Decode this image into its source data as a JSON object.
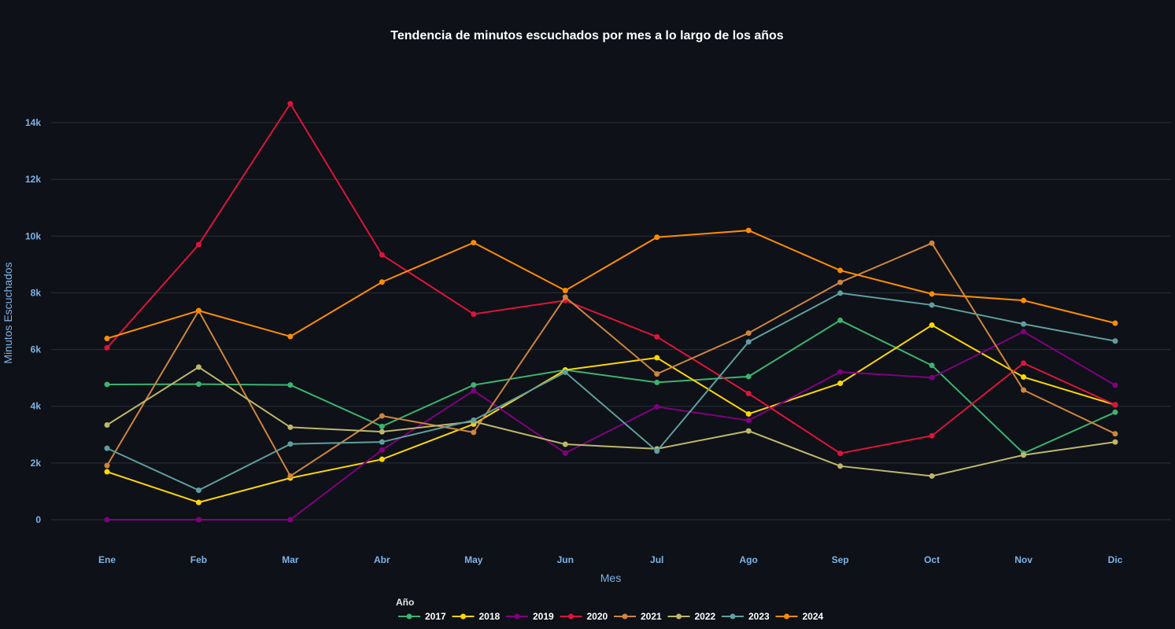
{
  "chart_data": {
    "type": "line",
    "title": "Tendencia de minutos escuchados por mes a lo largo de los años",
    "xlabel": "Mes",
    "ylabel": "Minutos Escuchados",
    "categories": [
      "Ene",
      "Feb",
      "Mar",
      "Abr",
      "May",
      "Jun",
      "Jul",
      "Ago",
      "Sep",
      "Oct",
      "Nov",
      "Dic"
    ],
    "yticks": [
      0,
      2000,
      4000,
      6000,
      8000,
      10000,
      12000,
      14000
    ],
    "ytick_labels": [
      "0",
      "2k",
      "4k",
      "6k",
      "8k",
      "10k",
      "12k",
      "14k"
    ],
    "ylim": [
      -1000,
      16000
    ],
    "grid": true,
    "legend_title": "Año",
    "legend_position": "bottom-center",
    "series": [
      {
        "name": "2017",
        "color": "#3cb371",
        "values": [
          4770,
          4780,
          4750,
          3290,
          4750,
          5280,
          4840,
          5050,
          7030,
          5440,
          2340,
          3790
        ]
      },
      {
        "name": "2018",
        "color": "#ffd700",
        "values": [
          1690,
          610,
          1470,
          2130,
          3370,
          5280,
          5710,
          3730,
          4810,
          6860,
          5030,
          4050
        ]
      },
      {
        "name": "2019",
        "color": "#800080",
        "values": [
          0,
          0,
          0,
          2460,
          4550,
          2350,
          3980,
          3500,
          5210,
          5010,
          6630,
          4740
        ]
      },
      {
        "name": "2020",
        "color": "#dc143c",
        "values": [
          6060,
          9700,
          14670,
          9340,
          7250,
          7730,
          6450,
          4450,
          2340,
          2960,
          5520,
          4050
        ]
      },
      {
        "name": "2021",
        "color": "#cd853f",
        "values": [
          1910,
          7370,
          1540,
          3660,
          3080,
          7850,
          5140,
          6580,
          8370,
          9750,
          4570,
          3030
        ]
      },
      {
        "name": "2022",
        "color": "#bdb76b",
        "values": [
          3340,
          5380,
          3260,
          3100,
          3460,
          2660,
          2500,
          3130,
          1890,
          1540,
          2280,
          2740
        ]
      },
      {
        "name": "2023",
        "color": "#5f9ea0",
        "values": [
          2520,
          1040,
          2670,
          2740,
          3510,
          5200,
          2420,
          6270,
          7990,
          7570,
          6900,
          6300
        ]
      },
      {
        "name": "2024",
        "color": "#ff8c00",
        "values": [
          6390,
          7370,
          6460,
          8380,
          9770,
          8080,
          9960,
          10200,
          8790,
          7960,
          7730,
          6930
        ]
      }
    ]
  }
}
